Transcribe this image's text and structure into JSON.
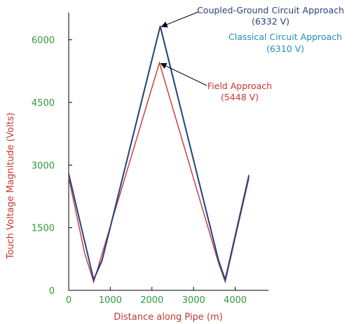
{
  "colors": {
    "axis_text": "#2e9b3c",
    "axis_title": "#c0392b",
    "axis_line": "#000000",
    "coupled": "#2c3f7a",
    "classical": "#1e8fbf",
    "field": "#cc3333"
  },
  "chart_data": {
    "type": "line",
    "xlabel": "Distance along Pipe (m)",
    "ylabel": "Touch Voltage Magnitude (Volts)",
    "xlim": [
      0,
      4800
    ],
    "ylim": [
      0,
      6650
    ],
    "xticks": [
      0,
      1000,
      2000,
      3000,
      4000
    ],
    "yticks": [
      0,
      1500,
      3000,
      4500,
      6000
    ],
    "grid": false,
    "series": [
      {
        "key": "field",
        "x": [
          0,
          380,
          600,
          2180,
          3600,
          3760,
          4330
        ],
        "y": [
          2700,
          900,
          200,
          5448,
          650,
          200,
          2680
        ]
      },
      {
        "key": "classical",
        "x": [
          0,
          600,
          800,
          2200,
          3600,
          3760,
          4330
        ],
        "y": [
          2780,
          250,
          700,
          6310,
          700,
          250,
          2740
        ]
      },
      {
        "key": "coupled",
        "x": [
          0,
          600,
          800,
          2200,
          3600,
          3760,
          4330
        ],
        "y": [
          2800,
          260,
          720,
          6332,
          720,
          260,
          2760
        ]
      }
    ],
    "annotations": [
      {
        "key": "coupled",
        "line1": "Coupled-Ground Circuit Approach",
        "line2": "(6332 V)",
        "point": [
          2200,
          6332
        ]
      },
      {
        "key": "classical",
        "line1": "Classical Circuit Approach",
        "line2": "(6310 V)"
      },
      {
        "key": "field",
        "line1": "Field Approach",
        "line2": "(5448 V)",
        "point": [
          2180,
          5448
        ]
      }
    ]
  }
}
